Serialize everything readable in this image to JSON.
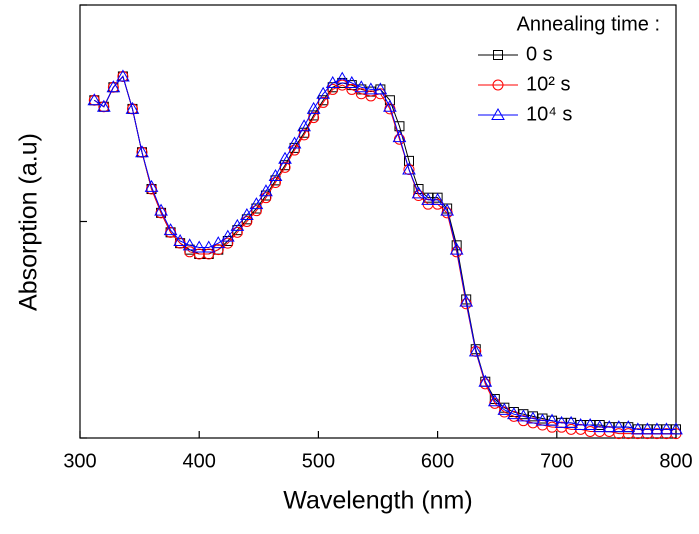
{
  "chart_data": {
    "type": "line",
    "xlabel": "Wavelength (nm)",
    "ylabel": "Absorption (a.u)",
    "legend_title": "Annealing time :",
    "legend": "upper right",
    "xlim": [
      300,
      800
    ],
    "xticks": [
      300,
      400,
      500,
      600,
      700,
      800
    ],
    "ylim": [
      0,
      2
    ],
    "yticks": [
      0,
      1,
      2
    ],
    "x": [
      312,
      320,
      328,
      336,
      344,
      352,
      360,
      368,
      376,
      384,
      392,
      400,
      408,
      416,
      424,
      432,
      440,
      448,
      456,
      464,
      472,
      480,
      488,
      496,
      504,
      512,
      520,
      528,
      536,
      544,
      552,
      560,
      568,
      576,
      584,
      592,
      600,
      608,
      616,
      624,
      632,
      640,
      648,
      656,
      664,
      672,
      680,
      688,
      696,
      704,
      712,
      720,
      728,
      736,
      744,
      752,
      760,
      768,
      776,
      784,
      792,
      800
    ],
    "series": [
      {
        "name": "0 s",
        "color": "#000000",
        "marker": "square",
        "values": [
          1.56,
          1.53,
          1.62,
          1.67,
          1.52,
          1.32,
          1.15,
          1.04,
          0.95,
          0.9,
          0.87,
          0.85,
          0.85,
          0.87,
          0.91,
          0.96,
          1.01,
          1.06,
          1.12,
          1.19,
          1.26,
          1.34,
          1.41,
          1.49,
          1.56,
          1.62,
          1.64,
          1.63,
          1.61,
          1.6,
          1.61,
          1.56,
          1.44,
          1.28,
          1.15,
          1.11,
          1.11,
          1.06,
          0.89,
          0.64,
          0.41,
          0.26,
          0.18,
          0.14,
          0.12,
          0.11,
          0.1,
          0.09,
          0.08,
          0.07,
          0.07,
          0.06,
          0.06,
          0.06,
          0.05,
          0.05,
          0.05,
          0.04,
          0.04,
          0.04,
          0.04,
          0.04
        ]
      },
      {
        "name": "10² s",
        "color": "#ff0000",
        "marker": "circle",
        "values": [
          1.56,
          1.53,
          1.62,
          1.67,
          1.52,
          1.32,
          1.15,
          1.04,
          0.95,
          0.9,
          0.86,
          0.85,
          0.85,
          0.87,
          0.9,
          0.95,
          1.0,
          1.05,
          1.11,
          1.18,
          1.25,
          1.33,
          1.4,
          1.48,
          1.55,
          1.61,
          1.63,
          1.61,
          1.59,
          1.58,
          1.59,
          1.52,
          1.38,
          1.24,
          1.12,
          1.08,
          1.08,
          1.04,
          0.86,
          0.62,
          0.4,
          0.25,
          0.16,
          0.12,
          0.1,
          0.08,
          0.07,
          0.06,
          0.05,
          0.05,
          0.04,
          0.04,
          0.03,
          0.03,
          0.03,
          0.02,
          0.02,
          0.02,
          0.02,
          0.02,
          0.02,
          0.02
        ]
      },
      {
        "name": "10⁴ s",
        "color": "#0000ff",
        "marker": "triangle",
        "values": [
          1.56,
          1.53,
          1.62,
          1.67,
          1.52,
          1.32,
          1.16,
          1.05,
          0.96,
          0.91,
          0.89,
          0.88,
          0.88,
          0.9,
          0.93,
          0.98,
          1.03,
          1.08,
          1.14,
          1.21,
          1.29,
          1.36,
          1.44,
          1.52,
          1.59,
          1.64,
          1.66,
          1.64,
          1.62,
          1.61,
          1.61,
          1.53,
          1.39,
          1.24,
          1.13,
          1.1,
          1.1,
          1.05,
          0.87,
          0.63,
          0.4,
          0.26,
          0.17,
          0.13,
          0.11,
          0.1,
          0.09,
          0.08,
          0.08,
          0.07,
          0.07,
          0.06,
          0.06,
          0.05,
          0.05,
          0.05,
          0.05,
          0.04,
          0.04,
          0.04,
          0.04,
          0.04
        ]
      }
    ]
  }
}
